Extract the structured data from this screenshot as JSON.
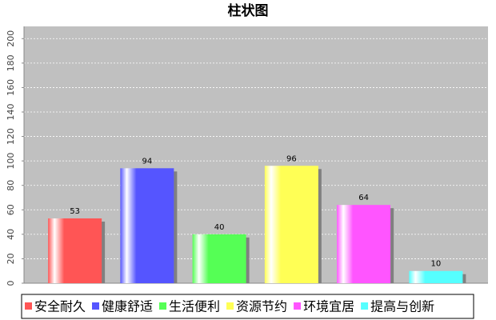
{
  "chart_data": {
    "type": "bar",
    "title": "柱状图",
    "categories": [
      "安全耐久",
      "健康舒适",
      "生活便利",
      "资源节约",
      "环境宜居",
      "提高与创新"
    ],
    "values": [
      53,
      94,
      40,
      96,
      64,
      10
    ],
    "colors": [
      "#ff5555",
      "#5555ff",
      "#55ff55",
      "#ffff55",
      "#ff55ff",
      "#55ffff"
    ],
    "ylim": [
      0,
      210
    ],
    "yticks": [
      0,
      20,
      40,
      60,
      80,
      100,
      120,
      140,
      160,
      180,
      200
    ],
    "grid": true,
    "legend": "bottom"
  }
}
